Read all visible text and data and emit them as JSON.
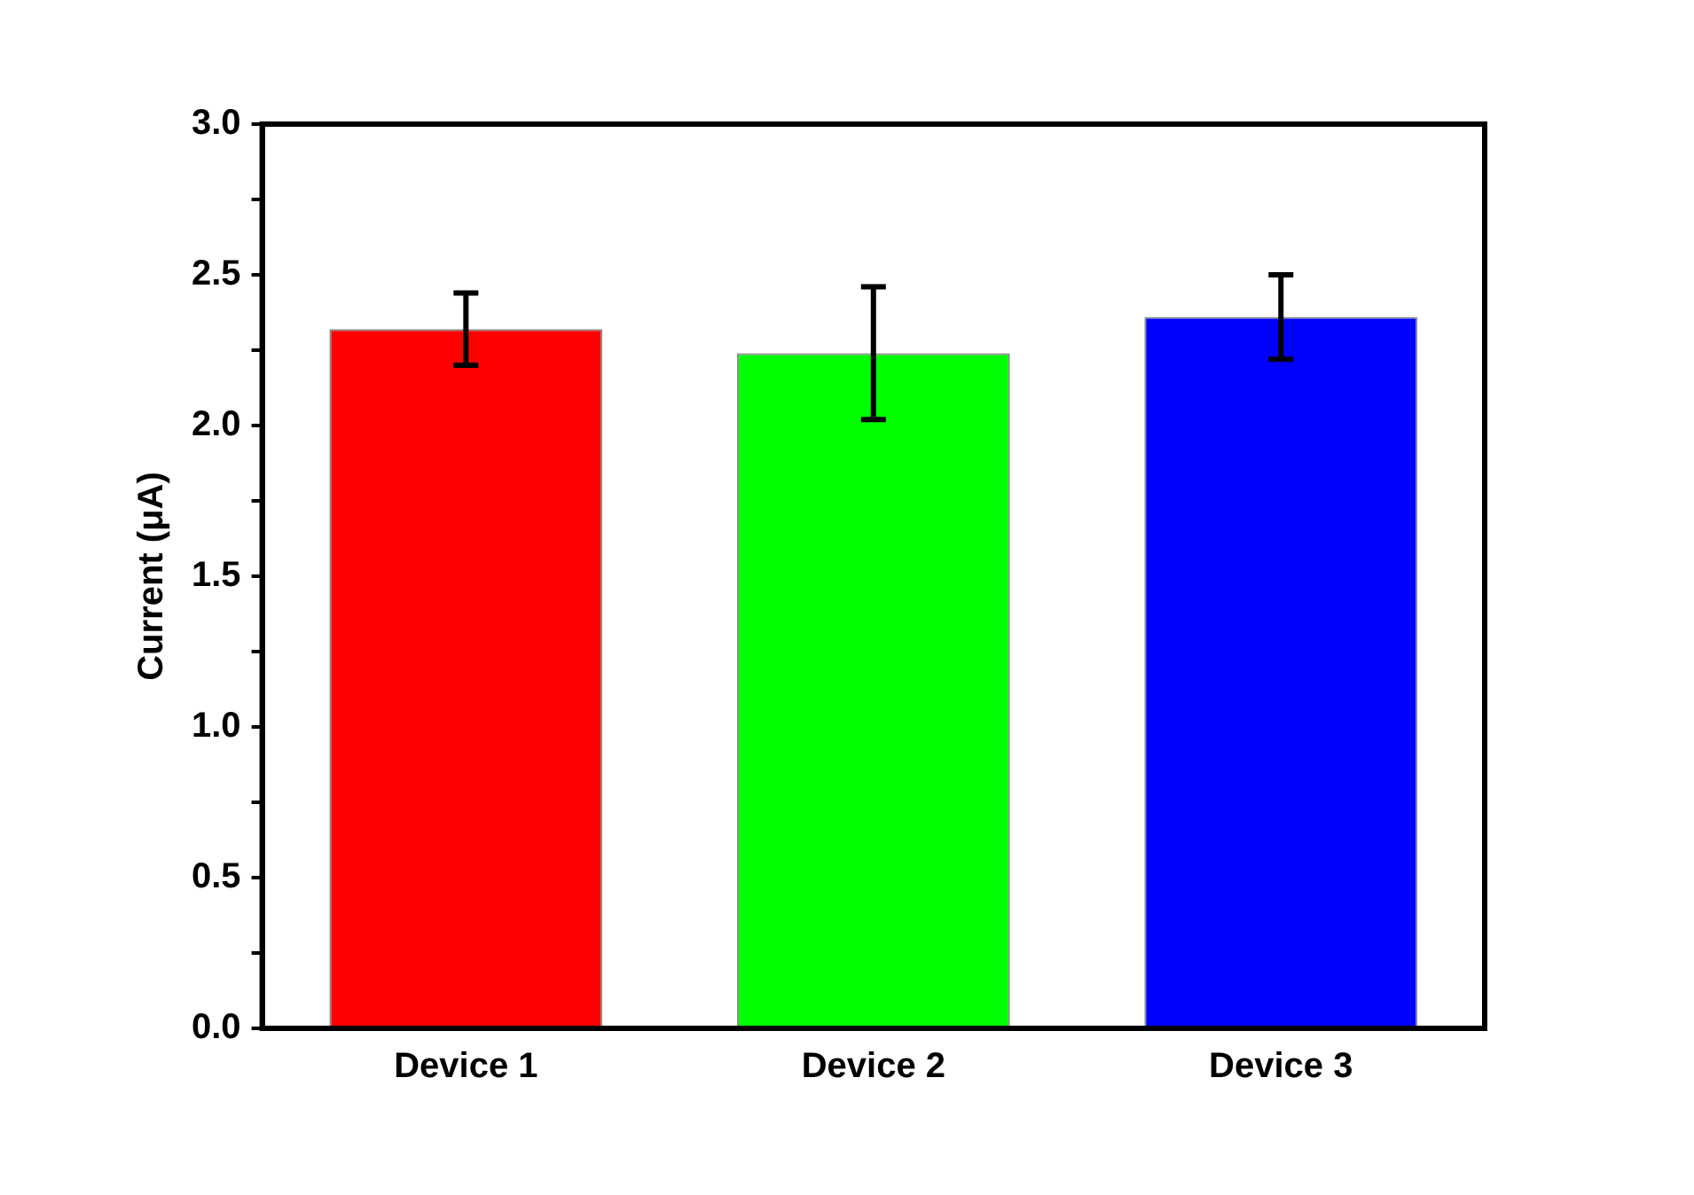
{
  "chart_data": {
    "type": "bar",
    "ylabel": "Current (μA)",
    "categories": [
      "Device 1",
      "Device 2",
      "Device 3"
    ],
    "values": [
      2.32,
      2.24,
      2.36
    ],
    "colors": [
      "#ff0000",
      "#00ff00",
      "#0000ff"
    ],
    "errors": [
      [
        2.2,
        2.44
      ],
      [
        2.02,
        2.46
      ],
      [
        2.22,
        2.5
      ]
    ],
    "ylim": [
      0,
      3.0
    ],
    "yticks": [
      {
        "value": 0,
        "label": "0.0"
      },
      {
        "value": 0.25,
        "label": null
      },
      {
        "value": 0.5,
        "label": "0.5"
      },
      {
        "value": 0.75,
        "label": null
      },
      {
        "value": 1,
        "label": "1.0"
      },
      {
        "value": 1.25,
        "label": null
      },
      {
        "value": 1.5,
        "label": "1.5"
      },
      {
        "value": 1.75,
        "label": null
      },
      {
        "value": 2,
        "label": "2.0"
      },
      {
        "value": 2.25,
        "label": null
      },
      {
        "value": 2.5,
        "label": "2.5"
      },
      {
        "value": 2.75,
        "label": null
      },
      {
        "value": 3,
        "label": "3.0"
      }
    ],
    "grid": false,
    "legend": false
  }
}
